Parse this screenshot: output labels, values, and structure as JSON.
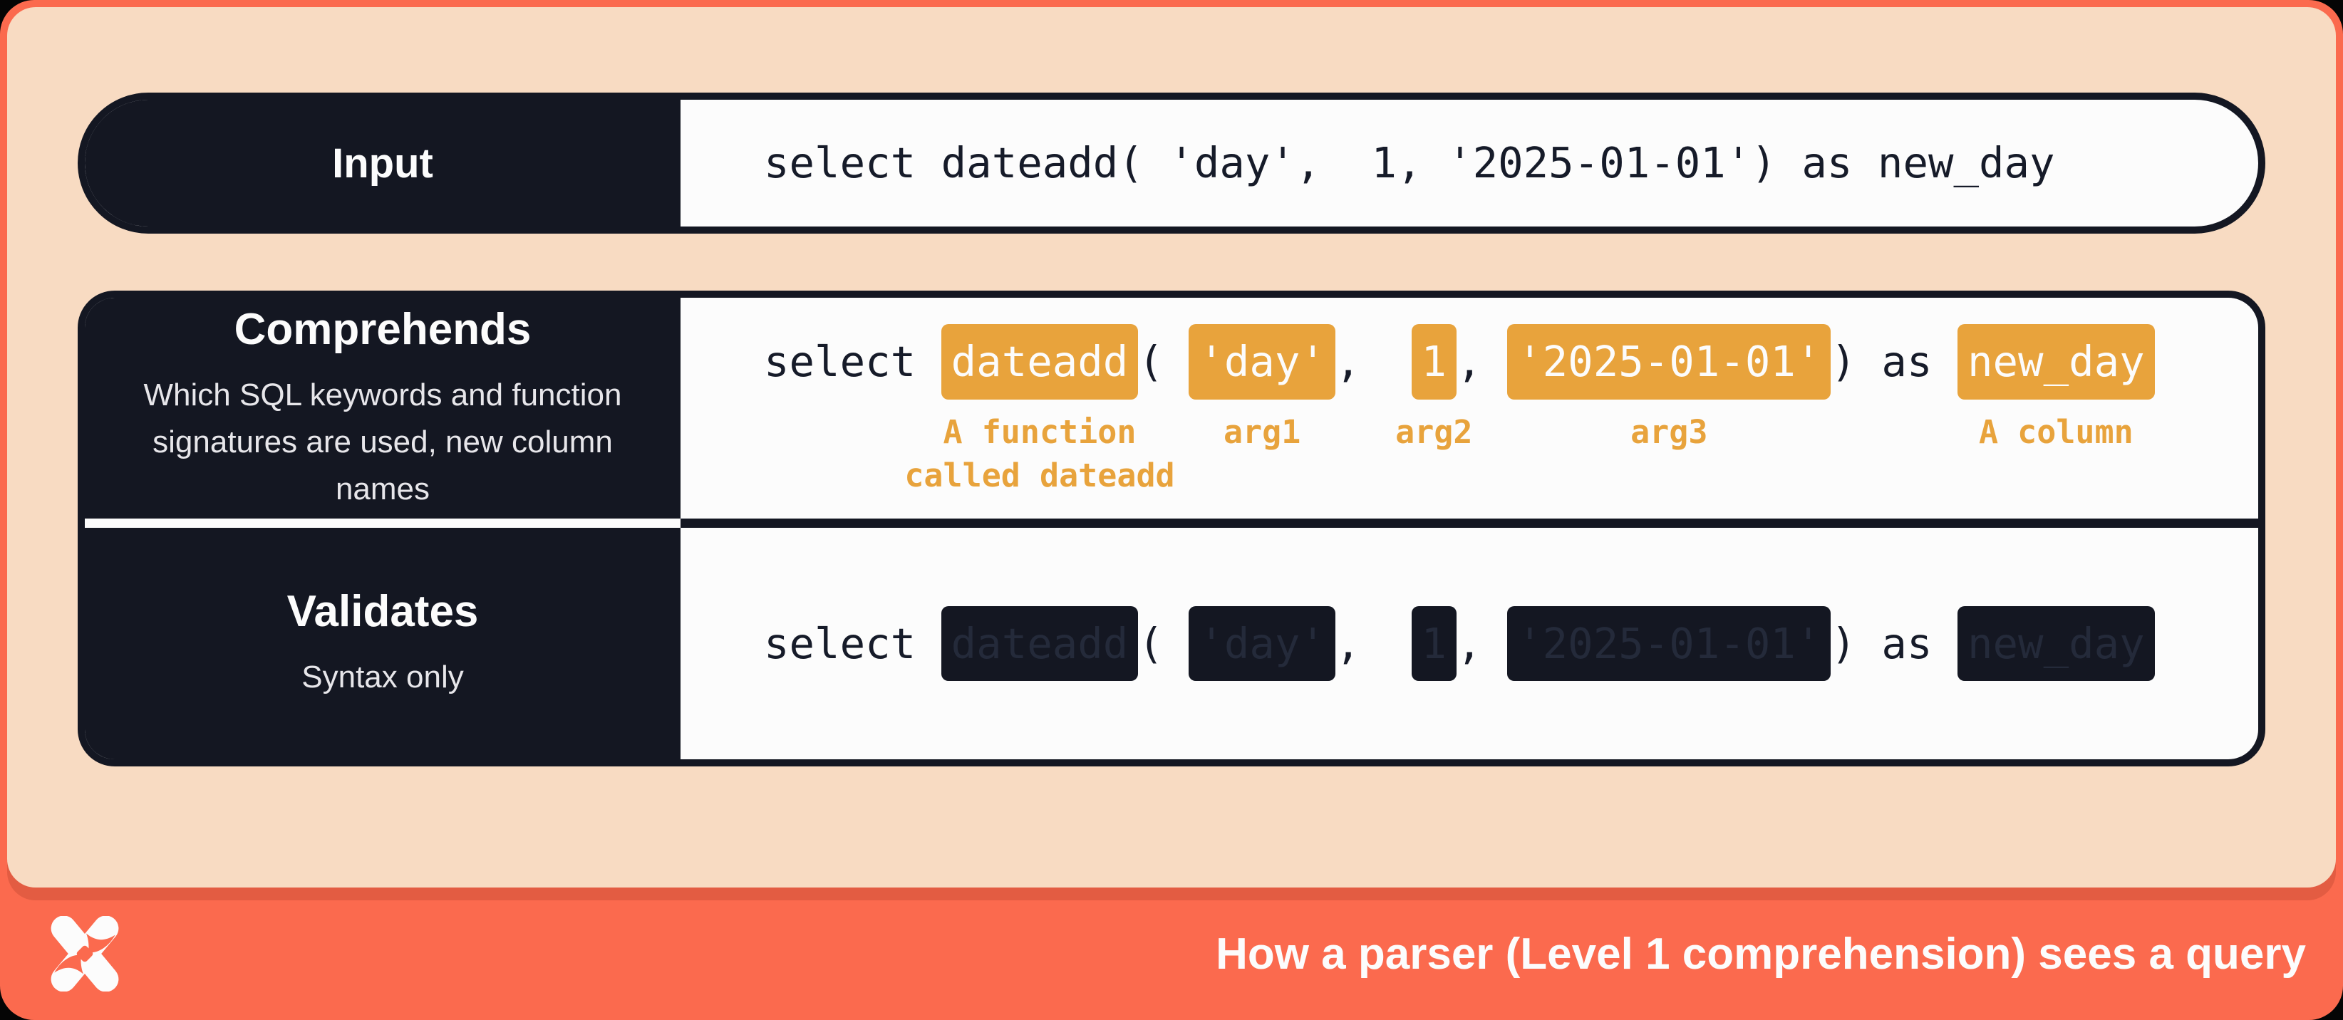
{
  "query": {
    "full": "select dateadd( 'day',  1, '2025-01-01') as new_day",
    "tokens": [
      {
        "text": "select ",
        "type": "plain"
      },
      {
        "text": "dateadd",
        "type": "highlight",
        "label": "A function\ncalled dateadd"
      },
      {
        "text": "( ",
        "type": "plain"
      },
      {
        "text": "'day'",
        "type": "highlight",
        "label": "arg1"
      },
      {
        "text": ",  ",
        "type": "plain"
      },
      {
        "text": "1",
        "type": "highlight",
        "label": "arg2"
      },
      {
        "text": ", ",
        "type": "plain"
      },
      {
        "text": "'2025-01-01'",
        "type": "highlight",
        "label": "arg3"
      },
      {
        "text": ") as ",
        "type": "plain"
      },
      {
        "text": "new_day",
        "type": "highlight",
        "label": "A column"
      }
    ]
  },
  "rows": {
    "input": {
      "label": "Input"
    },
    "comprehends": {
      "title": "Comprehends",
      "subtitle": "Which SQL keywords and function\nsignatures are used, new column names"
    },
    "validates": {
      "title": "Validates",
      "subtitle": "Syntax only"
    }
  },
  "footer": {
    "title": "How a parser (Level 1 comprehension) sees a query",
    "logo": "x-star-logo"
  },
  "colors": {
    "coral": "#FB6A4E",
    "peach": "#F8DBC2",
    "navy": "#141722",
    "white": "#FCFCFC",
    "amber": "#E8A33C"
  }
}
